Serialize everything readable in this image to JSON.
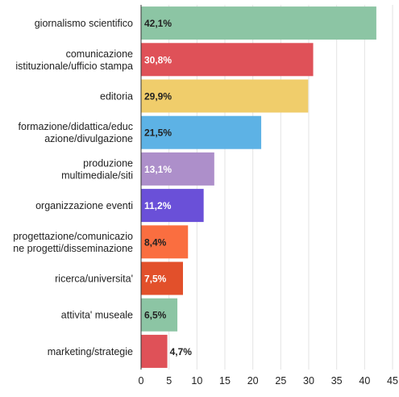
{
  "chart_data": {
    "type": "bar",
    "orientation": "horizontal",
    "categories": [
      [
        "giornalismo scientifico"
      ],
      [
        "comunicazione",
        "istituzionale/ufficio stampa"
      ],
      [
        "editoria"
      ],
      [
        "formazione/didattica/educ",
        "azione/divulgazione"
      ],
      [
        "produzione",
        "multimediale/siti"
      ],
      [
        "organizzazione eventi"
      ],
      [
        "progettazione/comunicazio",
        "ne progetti/disseminazione"
      ],
      [
        "ricerca/universita'"
      ],
      [
        "attivita' museale"
      ],
      [
        "marketing/strategie"
      ]
    ],
    "values": [
      42.1,
      30.8,
      29.9,
      21.5,
      13.1,
      11.2,
      8.4,
      7.5,
      6.5,
      4.7
    ],
    "value_labels": [
      "42,1%",
      "30,8%",
      "29,9%",
      "21,5%",
      "13,1%",
      "11,2%",
      "8,4%",
      "7,5%",
      "6,5%",
      "4,7%"
    ],
    "colors": [
      "#8cc5a4",
      "#df5158",
      "#f0cd6b",
      "#5db2e5",
      "#ad8fca",
      "#6a50d8",
      "#fa6e40",
      "#e2502b",
      "#8cc5a4",
      "#df5158"
    ],
    "label_colors": [
      "#222222",
      "#ffffff",
      "#222222",
      "#222222",
      "#ffffff",
      "#ffffff",
      "#222222",
      "#ffffff",
      "#222222",
      "#222222"
    ],
    "label_outside": [
      false,
      false,
      false,
      false,
      false,
      false,
      false,
      false,
      false,
      true
    ],
    "xticks": [
      "0",
      "5",
      "10",
      "15",
      "20",
      "25",
      "30",
      "35",
      "40",
      "45"
    ],
    "xlim": [
      0,
      45
    ],
    "grid": true,
    "title": "",
    "xlabel": "",
    "ylabel": ""
  }
}
